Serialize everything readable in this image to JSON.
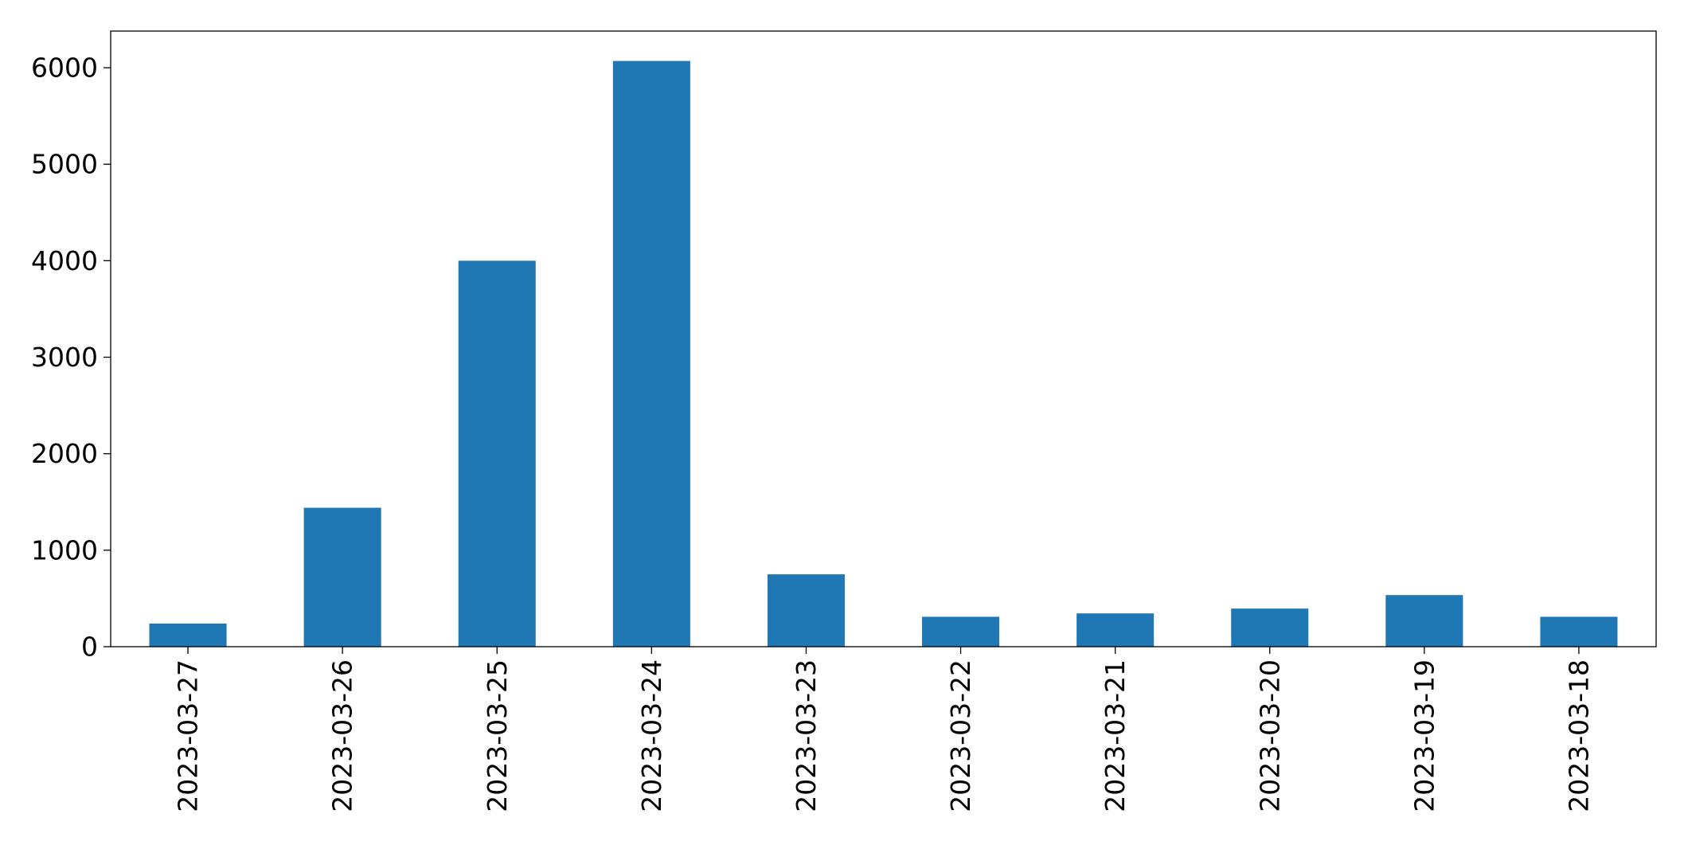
{
  "chart_data": {
    "type": "bar",
    "title": "",
    "xlabel": "",
    "ylabel": "",
    "categories": [
      "2023-03-27",
      "2023-03-26",
      "2023-03-25",
      "2023-03-24",
      "2023-03-23",
      "2023-03-22",
      "2023-03-21",
      "2023-03-20",
      "2023-03-19",
      "2023-03-18"
    ],
    "values": [
      240,
      1440,
      4000,
      6070,
      750,
      310,
      345,
      395,
      535,
      310
    ],
    "ylim": [
      0,
      6380
    ],
    "yticks": [
      0,
      1000,
      2000,
      3000,
      4000,
      5000,
      6000
    ],
    "bar_color": "#1f77b4",
    "grid": false,
    "legend": "none"
  }
}
